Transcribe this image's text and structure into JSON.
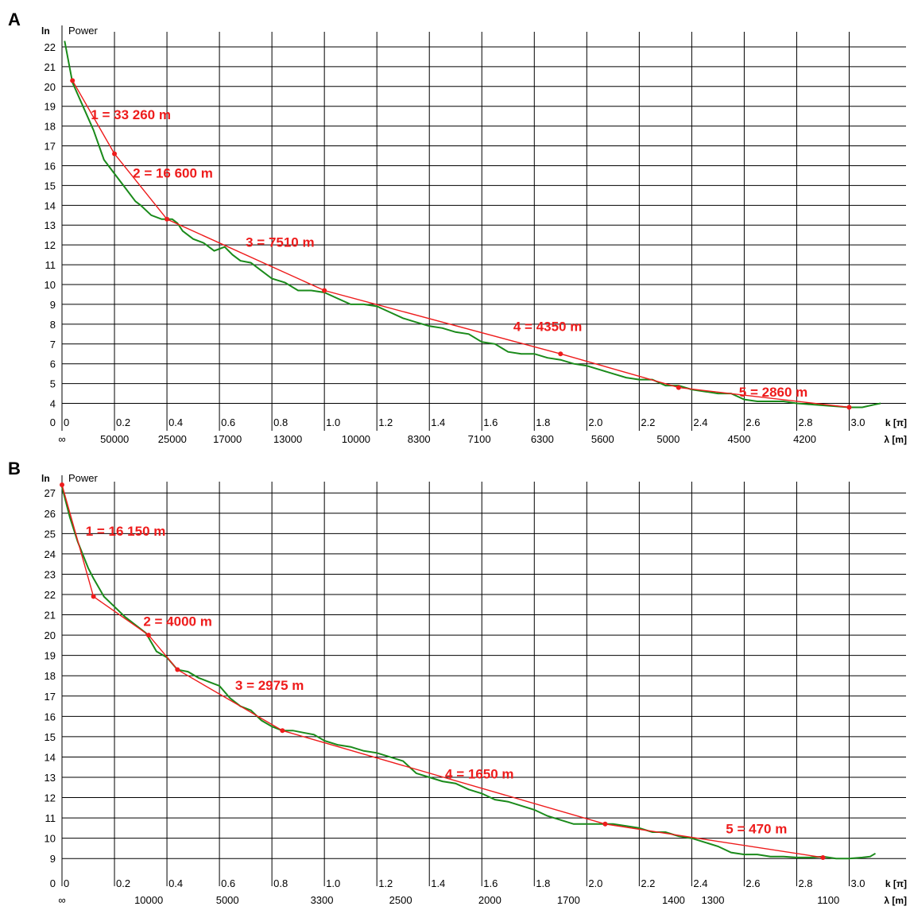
{
  "colors": {
    "grid": "#000000",
    "measured": "#1a8a1a",
    "fit": "#ee1c1c"
  },
  "chart_data": [
    {
      "type": "line",
      "panel_label": "A",
      "ylabel": "ln",
      "ylabel2": "Power",
      "xlabel": "k [π]",
      "xlabel2": "λ [m]",
      "xlim": [
        0,
        3.15
      ],
      "ylim": [
        3.5,
        22.6
      ],
      "yticks": [
        4,
        5,
        6,
        7,
        8,
        9,
        10,
        11,
        12,
        13,
        14,
        15,
        16,
        17,
        18,
        19,
        20,
        21,
        22
      ],
      "y_origin_label": "0",
      "xticks": [
        "0",
        "0.2",
        "0.4",
        "0.6",
        "0.8",
        "1.0",
        "1.2",
        "1.4",
        "1.6",
        "1.8",
        "2.0",
        "2.2",
        "2.4",
        "2.6",
        "2.8",
        "3.0"
      ],
      "xtick_values": [
        0,
        0.2,
        0.4,
        0.6,
        0.8,
        1.0,
        1.2,
        1.4,
        1.6,
        1.8,
        2.0,
        2.2,
        2.4,
        2.6,
        2.8,
        3.0
      ],
      "lambda_ticks": [
        {
          "k": 0.0,
          "label": "∞"
        },
        {
          "k": 0.14,
          "label": "50000"
        },
        {
          "k": 0.36,
          "label": "25000"
        },
        {
          "k": 0.57,
          "label": "17000"
        },
        {
          "k": 0.8,
          "label": "13000"
        },
        {
          "k": 1.06,
          "label": "10000"
        },
        {
          "k": 1.3,
          "label": "8300"
        },
        {
          "k": 1.53,
          "label": "7100"
        },
        {
          "k": 1.77,
          "label": "6300"
        },
        {
          "k": 2.0,
          "label": "5600"
        },
        {
          "k": 2.25,
          "label": "5000"
        },
        {
          "k": 2.52,
          "label": "4500"
        },
        {
          "k": 2.77,
          "label": "4200"
        }
      ],
      "series": [
        {
          "role": "measured",
          "x": [
            0.01,
            0.04,
            0.08,
            0.12,
            0.16,
            0.2,
            0.24,
            0.28,
            0.3,
            0.34,
            0.38,
            0.42,
            0.44,
            0.46,
            0.5,
            0.54,
            0.58,
            0.62,
            0.65,
            0.68,
            0.72,
            0.76,
            0.8,
            0.85,
            0.9,
            0.95,
            1.0,
            1.05,
            1.1,
            1.15,
            1.2,
            1.25,
            1.3,
            1.35,
            1.4,
            1.45,
            1.5,
            1.55,
            1.6,
            1.65,
            1.7,
            1.75,
            1.8,
            1.85,
            1.9,
            1.95,
            2.0,
            2.05,
            2.1,
            2.15,
            2.2,
            2.25,
            2.3,
            2.35,
            2.4,
            2.45,
            2.5,
            2.55,
            2.6,
            2.65,
            2.7,
            2.75,
            2.8,
            2.85,
            2.9,
            2.95,
            3.0,
            3.05,
            3.1,
            3.12
          ],
          "y": [
            22.3,
            20.2,
            19.0,
            17.8,
            16.3,
            15.6,
            14.9,
            14.2,
            14.0,
            13.5,
            13.3,
            13.3,
            13.1,
            12.7,
            12.3,
            12.1,
            11.7,
            11.9,
            11.5,
            11.2,
            11.1,
            10.7,
            10.3,
            10.1,
            9.7,
            9.7,
            9.6,
            9.3,
            9.0,
            9.0,
            8.9,
            8.6,
            8.3,
            8.1,
            7.9,
            7.8,
            7.6,
            7.5,
            7.1,
            7.0,
            6.6,
            6.5,
            6.5,
            6.3,
            6.2,
            6.0,
            5.9,
            5.7,
            5.5,
            5.3,
            5.2,
            5.2,
            4.9,
            4.9,
            4.7,
            4.6,
            4.5,
            4.5,
            4.2,
            4.1,
            4.1,
            4.1,
            4.0,
            3.95,
            3.9,
            3.85,
            3.8,
            3.8,
            3.95,
            4.0
          ]
        },
        {
          "role": "fit",
          "x": [
            0.04,
            0.2,
            0.4,
            1.0,
            1.9,
            2.35,
            3.0
          ],
          "y": [
            20.3,
            16.6,
            13.3,
            9.7,
            6.5,
            4.8,
            3.8
          ]
        }
      ],
      "annotations": [
        {
          "text": "1 = 33 260 m",
          "x": 0.11,
          "y": 18.35
        },
        {
          "text": "2 = 16 600 m",
          "x": 0.27,
          "y": 15.4
        },
        {
          "text": "3 = 7510 m",
          "x": 0.7,
          "y": 11.9
        },
        {
          "text": "4 = 4350 m",
          "x": 1.72,
          "y": 7.65
        },
        {
          "text": "5 = 2860 m",
          "x": 2.58,
          "y": 4.35
        }
      ]
    },
    {
      "type": "line",
      "panel_label": "B",
      "ylabel": "ln",
      "ylabel2": "Power",
      "xlabel": "k [π]",
      "xlabel2": "λ [m]",
      "xlim": [
        0,
        3.15
      ],
      "ylim": [
        8.5,
        27.4
      ],
      "yticks": [
        9,
        10,
        11,
        12,
        13,
        14,
        15,
        16,
        17,
        18,
        19,
        20,
        21,
        22,
        23,
        24,
        25,
        26,
        27
      ],
      "y_origin_label": "0",
      "xticks": [
        "0",
        "0.2",
        "0.4",
        "0.6",
        "0.8",
        "1.0",
        "1.2",
        "1.4",
        "1.6",
        "1.8",
        "2.0",
        "2.2",
        "2.4",
        "2.6",
        "2.8",
        "3.0"
      ],
      "xtick_values": [
        0,
        0.2,
        0.4,
        0.6,
        0.8,
        1.0,
        1.2,
        1.4,
        1.6,
        1.8,
        2.0,
        2.2,
        2.4,
        2.6,
        2.8,
        3.0
      ],
      "lambda_ticks": [
        {
          "k": 0.0,
          "label": "∞"
        },
        {
          "k": 0.27,
          "label": "10000"
        },
        {
          "k": 0.57,
          "label": "5000"
        },
        {
          "k": 0.93,
          "label": "3300"
        },
        {
          "k": 1.23,
          "label": "2500"
        },
        {
          "k": 1.57,
          "label": "2000"
        },
        {
          "k": 1.87,
          "label": "1700"
        },
        {
          "k": 2.27,
          "label": "1400"
        },
        {
          "k": 2.42,
          "label": "1300"
        },
        {
          "k": 2.86,
          "label": "1100"
        }
      ],
      "series": [
        {
          "role": "measured",
          "x": [
            0.0,
            0.03,
            0.06,
            0.1,
            0.12,
            0.16,
            0.2,
            0.24,
            0.28,
            0.32,
            0.36,
            0.4,
            0.44,
            0.48,
            0.52,
            0.56,
            0.6,
            0.64,
            0.68,
            0.72,
            0.76,
            0.8,
            0.84,
            0.88,
            0.92,
            0.96,
            1.0,
            1.05,
            1.1,
            1.15,
            1.2,
            1.25,
            1.3,
            1.35,
            1.4,
            1.45,
            1.5,
            1.55,
            1.6,
            1.65,
            1.7,
            1.75,
            1.8,
            1.85,
            1.9,
            1.95,
            2.0,
            2.05,
            2.1,
            2.15,
            2.2,
            2.25,
            2.3,
            2.35,
            2.4,
            2.45,
            2.5,
            2.55,
            2.6,
            2.65,
            2.7,
            2.75,
            2.8,
            2.85,
            2.9,
            2.95,
            3.0,
            3.05,
            3.08,
            3.1
          ],
          "y": [
            27.3,
            25.8,
            24.6,
            23.3,
            22.8,
            21.9,
            21.4,
            20.9,
            20.5,
            20.1,
            19.2,
            18.9,
            18.3,
            18.2,
            17.9,
            17.7,
            17.5,
            16.9,
            16.5,
            16.3,
            15.8,
            15.5,
            15.3,
            15.3,
            15.2,
            15.1,
            14.8,
            14.6,
            14.5,
            14.3,
            14.2,
            14.0,
            13.8,
            13.2,
            13.0,
            12.8,
            12.7,
            12.4,
            12.2,
            11.9,
            11.8,
            11.6,
            11.4,
            11.1,
            10.9,
            10.7,
            10.7,
            10.7,
            10.7,
            10.6,
            10.5,
            10.3,
            10.3,
            10.1,
            10.0,
            9.8,
            9.6,
            9.3,
            9.2,
            9.2,
            9.1,
            9.1,
            9.05,
            9.05,
            9.1,
            9.0,
            9.0,
            9.05,
            9.1,
            9.25
          ]
        },
        {
          "role": "fit",
          "x": [
            0.0,
            0.12,
            0.33,
            0.44,
            0.84,
            2.07,
            2.9
          ],
          "y": [
            27.4,
            21.9,
            20.0,
            18.3,
            15.3,
            10.7,
            9.05
          ]
        }
      ],
      "annotations": [
        {
          "text": "1 = 16 150 m",
          "x": 0.09,
          "y": 24.9
        },
        {
          "text": "2 = 4000 m",
          "x": 0.31,
          "y": 20.45
        },
        {
          "text": "3 = 2975 m",
          "x": 0.66,
          "y": 17.3
        },
        {
          "text": "4 = 1650 m",
          "x": 1.46,
          "y": 12.95
        },
        {
          "text": "5 = 470 m",
          "x": 2.53,
          "y": 10.25
        }
      ]
    }
  ]
}
